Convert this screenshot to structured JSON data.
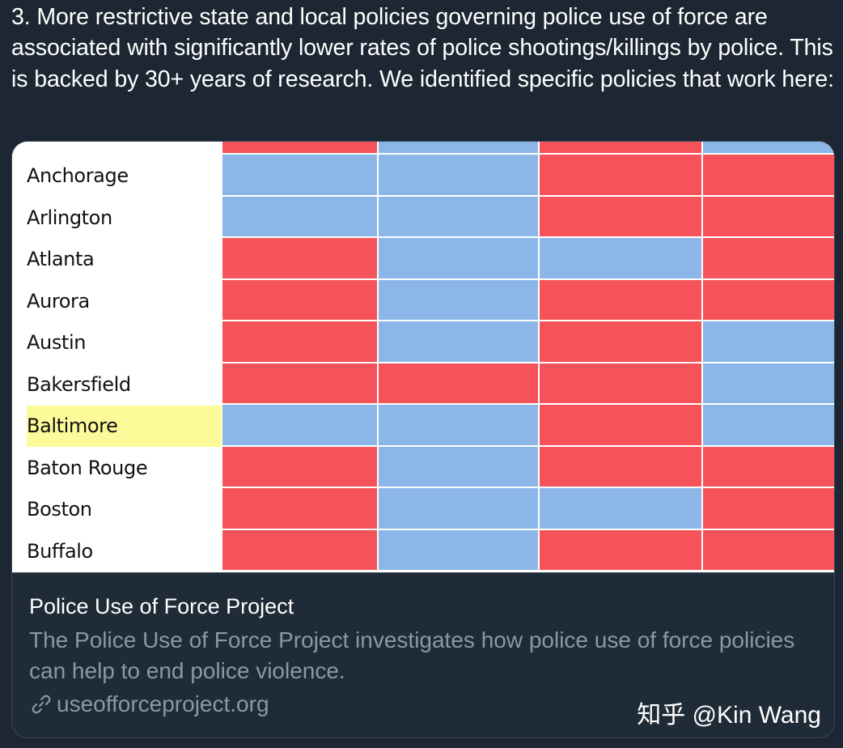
{
  "tweet": {
    "text": "3. More restrictive state and local policies governing police use of force are associated with significantly lower rates of police shootings/killings by police. This is backed by 30+ years of research. We identified specific policies that work here:"
  },
  "colors": {
    "red": "#f55259",
    "blue": "#8bb6e7",
    "highlight": "#fdfa9a",
    "background": "#1c2733"
  },
  "grid": {
    "top_partial_row": [
      "R",
      "B",
      "R",
      "B"
    ],
    "rows": [
      {
        "city": "Anchorage",
        "cells": [
          "B",
          "B",
          "R",
          "R"
        ],
        "highlighted": false
      },
      {
        "city": "Arlington",
        "cells": [
          "B",
          "B",
          "R",
          "R"
        ],
        "highlighted": false
      },
      {
        "city": "Atlanta",
        "cells": [
          "R",
          "B",
          "B",
          "R"
        ],
        "highlighted": false
      },
      {
        "city": "Aurora",
        "cells": [
          "R",
          "B",
          "R",
          "R"
        ],
        "highlighted": false
      },
      {
        "city": "Austin",
        "cells": [
          "R",
          "B",
          "R",
          "B"
        ],
        "highlighted": false
      },
      {
        "city": "Bakersfield",
        "cells": [
          "R",
          "R",
          "R",
          "B"
        ],
        "highlighted": false
      },
      {
        "city": "Baltimore",
        "cells": [
          "B",
          "B",
          "R",
          "B"
        ],
        "highlighted": true
      },
      {
        "city": "Baton Rouge",
        "cells": [
          "R",
          "B",
          "R",
          "R"
        ],
        "highlighted": false
      },
      {
        "city": "Boston",
        "cells": [
          "R",
          "B",
          "B",
          "R"
        ],
        "highlighted": false
      },
      {
        "city": "Buffalo",
        "cells": [
          "R",
          "B",
          "R",
          "R"
        ],
        "highlighted": false
      }
    ]
  },
  "card": {
    "title": "Police Use of Force Project",
    "description": "The Police Use of Force Project investigates how police use of force policies can help to end police violence.",
    "link_icon": "link-icon",
    "link_text": "useofforceproject.org"
  },
  "watermark": "知乎 @Kin Wang"
}
